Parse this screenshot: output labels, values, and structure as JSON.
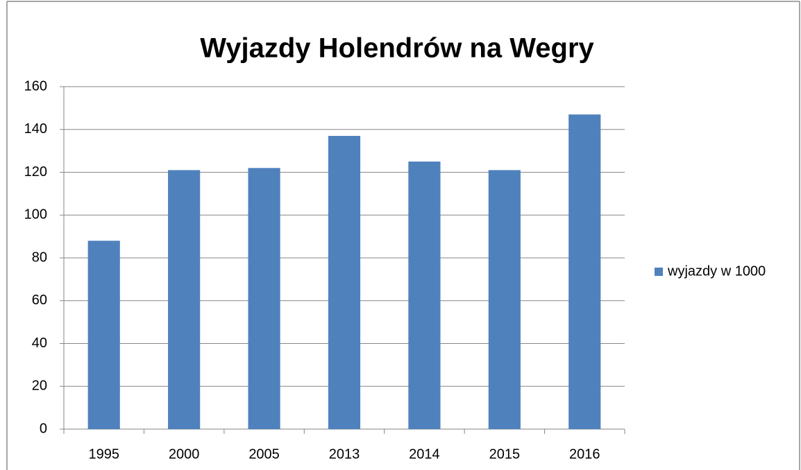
{
  "chart_data": {
    "type": "bar",
    "title": "Wyjazdy Holendrów na Wegry",
    "categories": [
      "1995",
      "2000",
      "2005",
      "2013",
      "2014",
      "2015",
      "2016"
    ],
    "series": [
      {
        "name": "wyjazdy w 1000",
        "color": "#4f81bd",
        "values": [
          88,
          121,
          122,
          137,
          125,
          121,
          147
        ]
      }
    ],
    "ylim": [
      0,
      160
    ],
    "yticks": [
      0,
      20,
      40,
      60,
      80,
      100,
      120,
      140,
      160
    ],
    "grid": true,
    "legend": "right"
  }
}
